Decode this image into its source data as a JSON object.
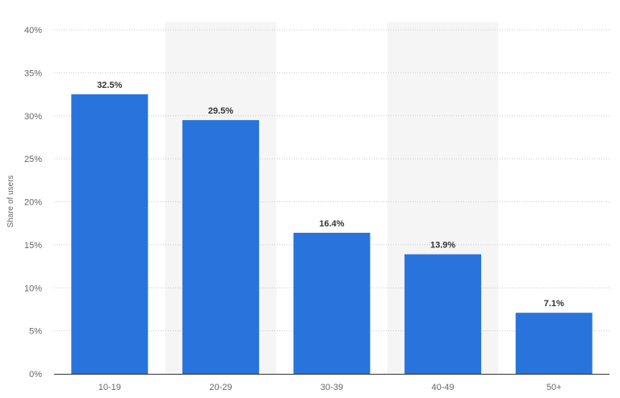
{
  "chart_data": {
    "type": "bar",
    "title": "",
    "xlabel": "",
    "ylabel": "Share of users",
    "categories": [
      "10-19",
      "20-29",
      "30-39",
      "40-49",
      "50+"
    ],
    "values": [
      32.5,
      29.5,
      16.4,
      13.9,
      7.1
    ],
    "value_labels": [
      "32.5%",
      "29.5%",
      "16.4%",
      "13.9%",
      "7.1%"
    ],
    "ylim": [
      0,
      40
    ],
    "yticks": [
      0,
      5,
      10,
      15,
      20,
      25,
      30,
      35,
      40
    ],
    "ytick_labels": [
      "0%",
      "5%",
      "10%",
      "15%",
      "20%",
      "25%",
      "30%",
      "35%",
      "40%"
    ],
    "grid": true,
    "legend": "none"
  },
  "colors": {
    "bar": "#2874dc",
    "alt_band": "#f5f5f5",
    "grid": "#c8c8c8",
    "axis": "#333333"
  }
}
